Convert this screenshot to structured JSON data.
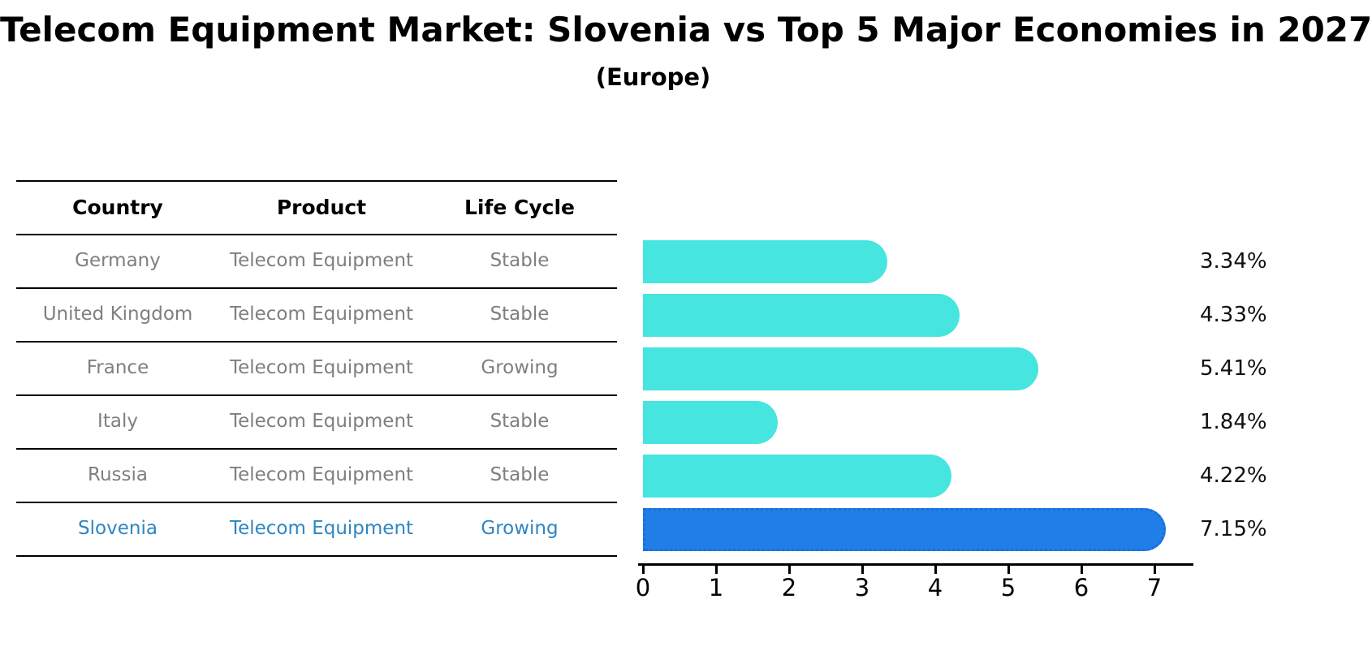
{
  "title": "Telecom Equipment Market: Slovenia vs Top 5 Major Economies in 2027",
  "subtitle": "(Europe)",
  "table": {
    "headers": [
      "Country",
      "Product",
      "Life Cycle"
    ],
    "rows": [
      {
        "country": "Germany",
        "product": "Telecom Equipment",
        "life_cycle": "Stable",
        "highlighted": false
      },
      {
        "country": "United Kingdom",
        "product": "Telecom Equipment",
        "life_cycle": "Stable",
        "highlighted": false
      },
      {
        "country": "France",
        "product": "Telecom Equipment",
        "life_cycle": "Growing",
        "highlighted": false
      },
      {
        "country": "Italy",
        "product": "Telecom Equipment",
        "life_cycle": "Stable",
        "highlighted": false
      },
      {
        "country": "Russia",
        "product": "Telecom Equipment",
        "life_cycle": "Stable",
        "highlighted": false
      },
      {
        "country": "Slovenia",
        "product": "Telecom Equipment",
        "life_cycle": "Growing",
        "highlighted": true
      }
    ]
  },
  "chart_data": {
    "type": "bar",
    "orientation": "horizontal",
    "title": "Telecom Equipment Market: Slovenia vs Top 5 Major Economies in 2027 (Europe)",
    "categories": [
      "Germany",
      "United Kingdom",
      "France",
      "Italy",
      "Russia",
      "Slovenia"
    ],
    "values": [
      3.34,
      4.33,
      5.41,
      1.84,
      4.22,
      7.15
    ],
    "value_labels": [
      "3.34%",
      "4.33%",
      "5.41%",
      "1.84%",
      "4.22%",
      "7.15%"
    ],
    "highlight_index": 5,
    "xticks": [
      0,
      1,
      2,
      3,
      4,
      5,
      6,
      7
    ],
    "xlim": [
      0,
      7.5
    ],
    "grid": false,
    "legend": false,
    "xlabel": "",
    "ylabel": ""
  },
  "colors": {
    "bar_default": "#46E5E0",
    "bar_highlight": "#1F7EE8",
    "bar_highlight_border": "#1A6FD8",
    "row_text": "#7f7f7f",
    "highlight_text": "#2E86C1",
    "header_text": "#000000",
    "line": "#000000"
  }
}
